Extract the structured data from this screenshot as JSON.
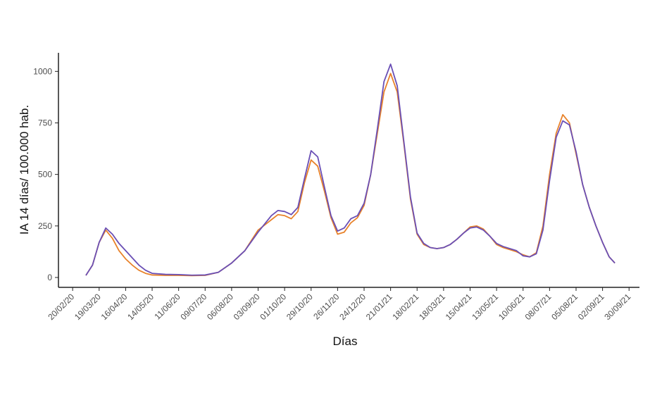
{
  "chart_data": {
    "type": "line",
    "x_label": "Días",
    "y_label": "IA 14 días/ 100.000 hab.",
    "x": [
      "05/03/20",
      "12/03/20",
      "19/03/20",
      "26/03/20",
      "02/04/20",
      "09/04/20",
      "16/04/20",
      "23/04/20",
      "30/04/20",
      "07/05/20",
      "14/05/20",
      "28/05/20",
      "11/06/20",
      "25/06/20",
      "09/07/20",
      "23/07/20",
      "06/08/20",
      "20/08/20",
      "03/09/20",
      "17/09/20",
      "24/09/20",
      "01/10/20",
      "08/10/20",
      "15/10/20",
      "22/10/20",
      "29/10/20",
      "05/11/20",
      "12/11/20",
      "19/11/20",
      "26/11/20",
      "03/12/20",
      "10/12/20",
      "17/12/20",
      "24/12/20",
      "31/12/20",
      "07/01/21",
      "14/01/21",
      "21/01/21",
      "28/01/21",
      "04/02/21",
      "11/02/21",
      "18/02/21",
      "25/02/21",
      "04/03/21",
      "11/03/21",
      "18/03/21",
      "25/03/21",
      "01/04/21",
      "08/04/21",
      "15/04/21",
      "22/04/21",
      "29/04/21",
      "06/05/21",
      "13/05/21",
      "20/05/21",
      "27/05/21",
      "03/06/21",
      "10/06/21",
      "17/06/21",
      "24/06/21",
      "01/07/21",
      "08/07/21",
      "15/07/21",
      "22/07/21",
      "29/07/21",
      "05/08/21",
      "12/08/21",
      "19/08/21",
      "26/08/21",
      "02/09/21",
      "09/09/21",
      "15/09/21"
    ],
    "series": [
      {
        "color": "#e8822a",
        "values": [
          10,
          60,
          170,
          230,
          190,
          130,
          90,
          60,
          35,
          20,
          12,
          10,
          10,
          9,
          10,
          25,
          70,
          130,
          230,
          280,
          305,
          300,
          285,
          320,
          460,
          570,
          540,
          420,
          290,
          210,
          220,
          265,
          290,
          350,
          500,
          700,
          900,
          990,
          900,
          650,
          380,
          210,
          160,
          145,
          140,
          145,
          160,
          185,
          215,
          245,
          250,
          235,
          200,
          160,
          145,
          135,
          125,
          110,
          100,
          120,
          250,
          500,
          700,
          790,
          750,
          600,
          450,
          340,
          250,
          170,
          100,
          70
        ]
      },
      {
        "color": "#6a4fb5",
        "values": [
          10,
          60,
          170,
          240,
          210,
          165,
          130,
          95,
          60,
          35,
          20,
          15,
          14,
          11,
          12,
          25,
          70,
          130,
          220,
          300,
          325,
          320,
          305,
          340,
          480,
          615,
          585,
          440,
          300,
          225,
          240,
          285,
          300,
          360,
          500,
          720,
          950,
          1035,
          930,
          660,
          390,
          215,
          165,
          145,
          140,
          145,
          160,
          185,
          215,
          240,
          245,
          230,
          200,
          165,
          150,
          140,
          130,
          105,
          100,
          115,
          230,
          470,
          680,
          760,
          740,
          610,
          450,
          340,
          250,
          170,
          100,
          70
        ]
      }
    ],
    "xlim": [
      "05/02/20",
      "11/10/21"
    ],
    "xticks": [
      "20/02/20",
      "19/03/20",
      "16/04/20",
      "14/05/20",
      "11/06/20",
      "09/07/20",
      "06/08/20",
      "03/09/20",
      "01/10/20",
      "29/10/20",
      "26/11/20",
      "24/12/20",
      "21/01/21",
      "18/02/21",
      "18/03/21",
      "15/04/21",
      "13/05/21",
      "10/06/21",
      "08/07/21",
      "05/08/21",
      "02/09/21",
      "30/09/21"
    ],
    "ylim": [
      -48,
      1090
    ],
    "yticks": [
      0,
      250,
      500,
      750,
      1000
    ],
    "grid": false
  }
}
